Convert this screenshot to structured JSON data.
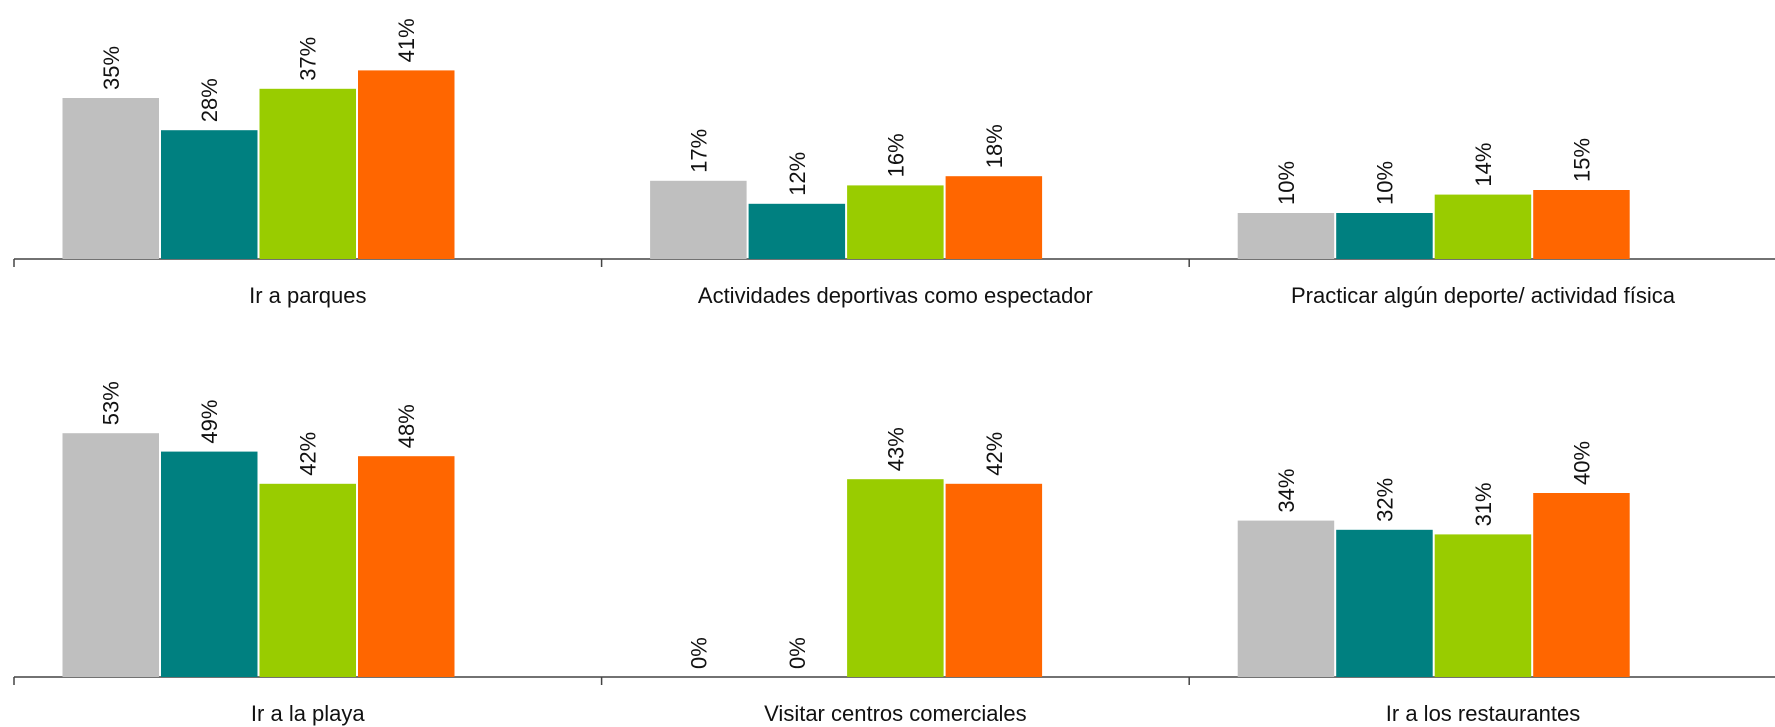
{
  "chart_data": [
    {
      "type": "bar",
      "categories": [
        "Ir a parques",
        "Actividades deportivas como espectador",
        "Practicar algún deporte/ actividad física"
      ],
      "ylim": [
        0,
        55
      ],
      "series": [
        {
          "color": "#bfbfbf",
          "values": [
            35,
            17,
            10
          ],
          "value_labels": [
            "35%",
            "17%",
            "10%"
          ]
        },
        {
          "color": "#008080",
          "values": [
            28,
            12,
            10
          ],
          "value_labels": [
            "28%",
            "12%",
            "10%"
          ]
        },
        {
          "color": "#99cc00",
          "values": [
            37,
            16,
            14
          ],
          "value_labels": [
            "37%",
            "16%",
            "14%"
          ]
        },
        {
          "color": "#ff6600",
          "values": [
            41,
            18,
            15
          ],
          "value_labels": [
            "41%",
            "18%",
            "15%"
          ]
        }
      ]
    },
    {
      "type": "bar",
      "categories": [
        "Ir a la playa",
        "Visitar centros comerciales",
        "Ir a los restaurantes"
      ],
      "ylim": [
        0,
        55
      ],
      "series": [
        {
          "color": "#bfbfbf",
          "values": [
            53,
            0,
            34
          ],
          "value_labels": [
            "53%",
            "0%",
            "34%"
          ]
        },
        {
          "color": "#008080",
          "values": [
            49,
            0,
            32
          ],
          "value_labels": [
            "49%",
            "0%",
            "32%"
          ]
        },
        {
          "color": "#99cc00",
          "values": [
            42,
            43,
            31
          ],
          "value_labels": [
            "42%",
            "43%",
            "31%"
          ]
        },
        {
          "color": "#ff6600",
          "values": [
            48,
            42,
            40
          ],
          "value_labels": [
            "48%",
            "42%",
            "40%"
          ]
        }
      ]
    }
  ]
}
